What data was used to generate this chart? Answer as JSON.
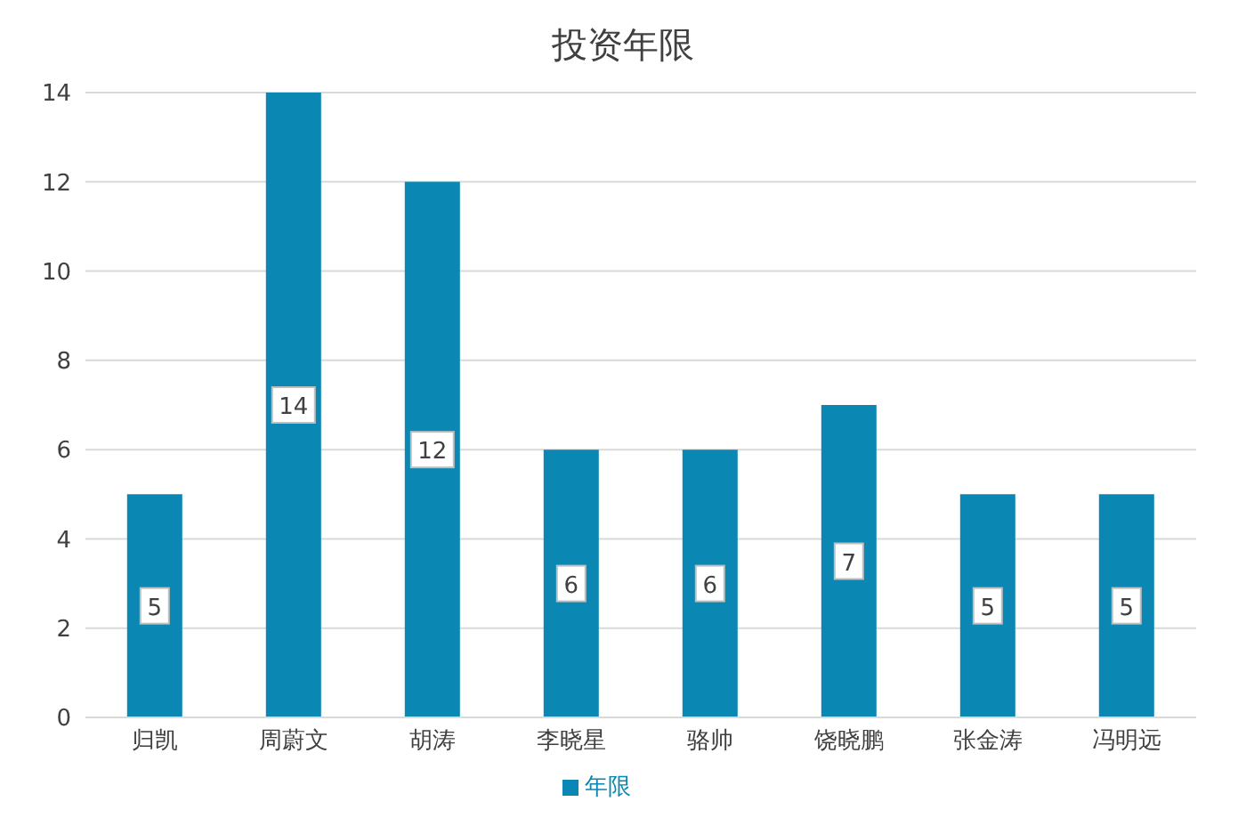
{
  "chart_data": {
    "type": "bar",
    "title": "投资年限",
    "categories": [
      "归凯",
      "周蔚文",
      "胡涛",
      "李晓星",
      "骆帅",
      "饶晓鹏",
      "张金涛",
      "冯明远"
    ],
    "series": [
      {
        "name": "年限",
        "color": "#0a87b2",
        "values": [
          5,
          14,
          12,
          6,
          6,
          7,
          5,
          5
        ]
      }
    ],
    "ylim": [
      0,
      14
    ],
    "yticks": [
      0,
      2,
      4,
      6,
      8,
      10,
      12,
      14
    ],
    "grid": "y",
    "legend": "bottom",
    "data_labels": true
  }
}
